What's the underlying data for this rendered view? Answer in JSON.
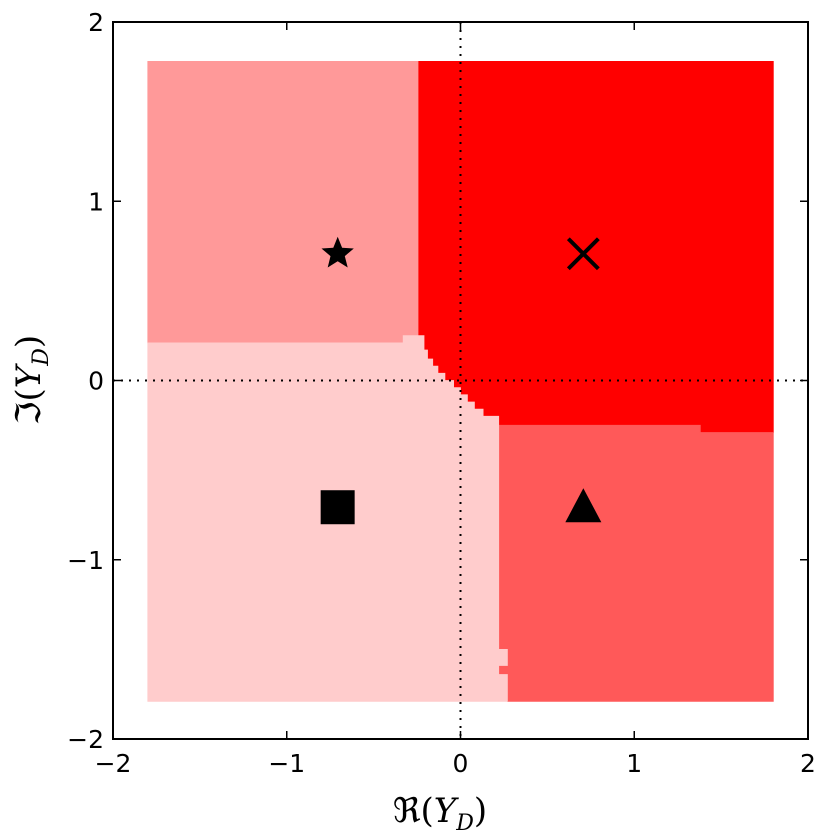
{
  "chart_data": {
    "type": "heatmap",
    "title": "",
    "xlabel": "ℜ(Y_D)",
    "ylabel": "ℑ(Y_D)",
    "xlim": [
      -2,
      2
    ],
    "ylim": [
      -2,
      2
    ],
    "xticks": [
      -2,
      -1,
      0,
      1,
      2
    ],
    "yticks": [
      -2,
      -1,
      0,
      1,
      2
    ],
    "xtick_labels": [
      "−2",
      "−1",
      "0",
      "1",
      "2"
    ],
    "ytick_labels": [
      "−2",
      "−1",
      "0",
      "1",
      "2"
    ],
    "grid": false,
    "reference_lines": {
      "x": 0,
      "y": 0,
      "style": "dotted"
    },
    "regions": [
      {
        "color": "#ff9999",
        "polygon": [
          [
            -1.8,
            1.78
          ],
          [
            -0.24,
            1.78
          ],
          [
            -0.24,
            0.25
          ],
          [
            -0.33,
            0.25
          ],
          [
            -0.33,
            0.21
          ],
          [
            -1.8,
            0.21
          ]
        ]
      },
      {
        "color": "#ff0000",
        "polygon": [
          [
            -0.24,
            1.78
          ],
          [
            1.8,
            1.78
          ],
          [
            1.8,
            -0.29
          ],
          [
            1.38,
            -0.29
          ],
          [
            1.38,
            -0.25
          ],
          [
            0.22,
            -0.25
          ],
          [
            0.22,
            -0.2
          ],
          [
            0.13,
            -0.2
          ],
          [
            0.13,
            -0.16
          ],
          [
            0.08,
            -0.16
          ],
          [
            0.08,
            -0.12
          ],
          [
            0.04,
            -0.12
          ],
          [
            0.04,
            -0.08
          ],
          [
            0.0,
            -0.08
          ],
          [
            0.0,
            -0.04
          ],
          [
            -0.04,
            -0.04
          ],
          [
            -0.04,
            0.0
          ],
          [
            -0.09,
            0.0
          ],
          [
            -0.09,
            0.04
          ],
          [
            -0.13,
            0.04
          ],
          [
            -0.13,
            0.08
          ],
          [
            -0.16,
            0.08
          ],
          [
            -0.16,
            0.12
          ],
          [
            -0.19,
            0.12
          ],
          [
            -0.19,
            0.17
          ],
          [
            -0.21,
            0.17
          ],
          [
            -0.21,
            0.21
          ],
          [
            -0.24,
            0.21
          ]
        ]
      },
      {
        "color": "#ff5959",
        "polygon": [
          [
            0.22,
            -0.25
          ],
          [
            1.38,
            -0.25
          ],
          [
            1.38,
            -0.29
          ],
          [
            1.8,
            -0.29
          ],
          [
            1.8,
            -1.79
          ],
          [
            0.27,
            -1.79
          ],
          [
            0.27,
            -1.64
          ],
          [
            0.22,
            -1.64
          ],
          [
            0.22,
            -1.59
          ],
          [
            0.27,
            -1.59
          ],
          [
            0.27,
            -1.5
          ],
          [
            0.22,
            -1.5
          ]
        ]
      },
      {
        "color": "#ffcccc",
        "polygon": [
          [
            -1.8,
            0.21
          ],
          [
            -0.33,
            0.21
          ],
          [
            -0.33,
            0.25
          ],
          [
            -0.21,
            0.25
          ],
          [
            -0.21,
            0.17
          ],
          [
            -0.19,
            0.17
          ],
          [
            -0.19,
            0.12
          ],
          [
            -0.16,
            0.12
          ],
          [
            -0.16,
            0.08
          ],
          [
            -0.13,
            0.08
          ],
          [
            -0.13,
            0.04
          ],
          [
            -0.09,
            0.04
          ],
          [
            -0.09,
            0.0
          ],
          [
            -0.04,
            0.0
          ],
          [
            -0.04,
            -0.04
          ],
          [
            0.0,
            -0.04
          ],
          [
            0.0,
            -0.08
          ],
          [
            0.04,
            -0.08
          ],
          [
            0.04,
            -0.12
          ],
          [
            0.08,
            -0.12
          ],
          [
            0.08,
            -0.16
          ],
          [
            0.13,
            -0.16
          ],
          [
            0.13,
            -0.2
          ],
          [
            0.22,
            -0.2
          ],
          [
            0.22,
            -0.25
          ],
          [
            0.22,
            -1.5
          ],
          [
            0.27,
            -1.5
          ],
          [
            0.27,
            -1.59
          ],
          [
            0.22,
            -1.59
          ],
          [
            0.22,
            -1.64
          ],
          [
            0.27,
            -1.64
          ],
          [
            0.27,
            -1.79
          ],
          [
            -1.8,
            -1.79
          ]
        ]
      }
    ],
    "markers": [
      {
        "symbol": "star",
        "x": -0.707,
        "y": 0.707
      },
      {
        "symbol": "x",
        "x": 0.707,
        "y": 0.707
      },
      {
        "symbol": "square",
        "x": -0.707,
        "y": -0.707
      },
      {
        "symbol": "triangle",
        "x": 0.707,
        "y": -0.707
      }
    ]
  }
}
